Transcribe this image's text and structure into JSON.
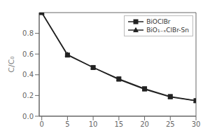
{
  "chart_data": {
    "type": "line",
    "x": [
      0,
      5,
      10,
      15,
      20,
      25,
      30
    ],
    "series": [
      {
        "name": "BiOClBr",
        "color": "#222222",
        "marker": "square",
        "values": [
          1.0,
          0.59,
          0.47,
          0.36,
          0.265,
          0.19,
          0.15
        ]
      },
      {
        "name": "BiO₁₋ₓClBr-Sn",
        "color": "#222222",
        "marker": "triangle",
        "values": [
          1.0,
          0.595,
          0.47,
          0.355,
          0.26,
          0.185,
          0.148
        ]
      }
    ],
    "ylabel": "C/C₀",
    "xlim": [
      -0.5,
      30
    ],
    "ylim": [
      0.0,
      1.0
    ],
    "xticks": [
      0,
      5,
      10,
      15,
      20,
      25,
      30
    ],
    "yticks": [
      {
        "value": 0,
        "label": "0.0"
      },
      0.2,
      0.4,
      0.6,
      0.8
    ],
    "grid": false,
    "legend": "upper right"
  }
}
